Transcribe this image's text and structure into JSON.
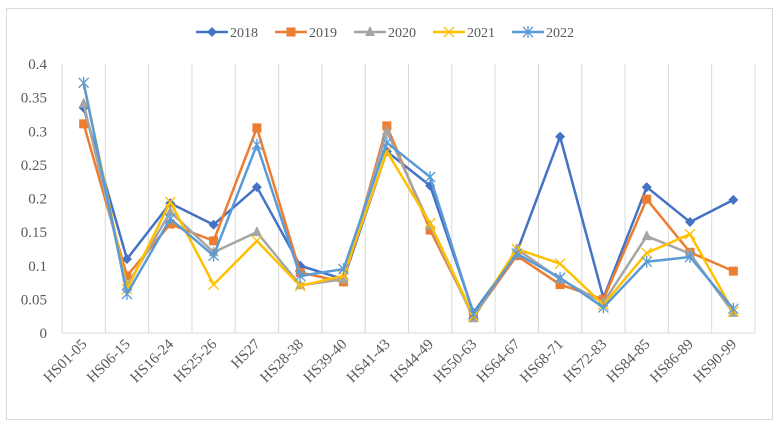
{
  "chart_data": {
    "type": "line",
    "title": "",
    "xlabel": "",
    "ylabel": "",
    "ylim": [
      0,
      0.4
    ],
    "yticks": [
      "0",
      "0.05",
      "0.1",
      "0.15",
      "0.2",
      "0.25",
      "0.3",
      "0.35",
      "0.4"
    ],
    "ytick_values": [
      0,
      0.05,
      0.1,
      0.15,
      0.2,
      0.25,
      0.3,
      0.35,
      0.4
    ],
    "grid": "vertical category separators",
    "legend_position": "top",
    "categories": [
      "HS01-05",
      "HS06-15",
      "HS16-24",
      "HS25-26",
      "HS27",
      "HS28-38",
      "HS39-40",
      "HS41-43",
      "HS44-49",
      "HS50-63",
      "HS64-67",
      "HS68-71",
      "HS72-83",
      "HS84-85",
      "HS86-89",
      "HS90-99"
    ],
    "series": [
      {
        "name": "2018",
        "color": "#4472c4",
        "marker": "diamond",
        "values": [
          0.335,
          0.11,
          0.193,
          0.161,
          0.217,
          0.1,
          0.08,
          0.27,
          0.219,
          0.03,
          0.12,
          0.292,
          0.052,
          0.217,
          0.165,
          0.198
        ]
      },
      {
        "name": "2019",
        "color": "#ed7d31",
        "marker": "square",
        "values": [
          0.311,
          0.085,
          0.162,
          0.137,
          0.305,
          0.09,
          0.076,
          0.308,
          0.153,
          0.025,
          0.115,
          0.072,
          0.05,
          0.199,
          0.12,
          0.092
        ]
      },
      {
        "name": "2020",
        "color": "#a5a5a5",
        "marker": "triangle",
        "values": [
          0.341,
          0.07,
          0.18,
          0.12,
          0.15,
          0.071,
          0.08,
          0.3,
          0.16,
          0.022,
          0.125,
          0.08,
          0.045,
          0.144,
          0.118,
          0.03
        ]
      },
      {
        "name": "2021",
        "color": "#ffc000",
        "marker": "x",
        "values": [
          0.372,
          0.065,
          0.195,
          0.072,
          0.137,
          0.07,
          0.085,
          0.27,
          0.163,
          0.025,
          0.125,
          0.103,
          0.042,
          0.119,
          0.147,
          0.032
        ]
      },
      {
        "name": "2022",
        "color": "#5b9bd5",
        "marker": "star",
        "values": [
          0.372,
          0.058,
          0.17,
          0.115,
          0.28,
          0.085,
          0.095,
          0.283,
          0.232,
          0.028,
          0.118,
          0.082,
          0.038,
          0.106,
          0.113,
          0.036
        ]
      }
    ]
  }
}
